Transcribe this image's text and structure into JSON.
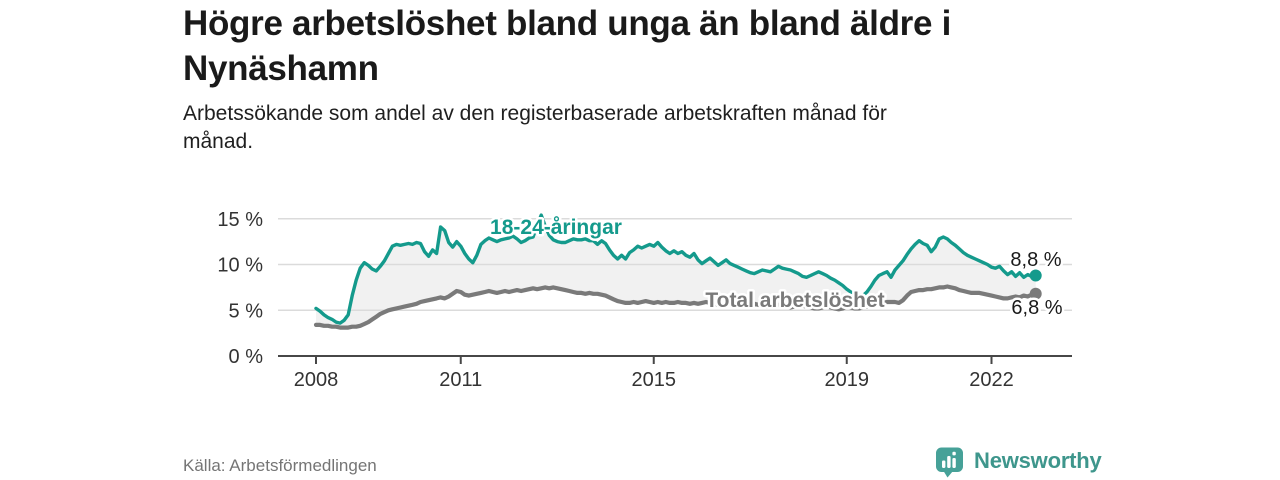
{
  "header": {
    "title": "Högre arbetslöshet bland unga än bland äldre i\nNynäshamn",
    "subtitle": "Arbetssökande som andel av den registerbaserade arbetskraften månad för\nmånad."
  },
  "footer": {
    "source": "Källa: Arbetsförmedlingen",
    "brand": "Newsworthy"
  },
  "colors": {
    "accent_teal": "#149A8C",
    "total_gray": "#7A7A7A",
    "band": "#F1F1F1",
    "grid": "#DBDBDB",
    "axis": "#474747",
    "tick_text": "#333333",
    "annotation": "#1A1A1A",
    "brand_icon_teal": "#46A198",
    "brand_text_teal": "#3E968C",
    "source_text": "#757575"
  },
  "chart_data": {
    "type": "line",
    "frequency": "monthly",
    "start": "2008-01",
    "end": "2022-12",
    "grid": true,
    "x_ticks": [
      2008,
      2011,
      2015,
      2019,
      2022
    ],
    "y_ticks": [
      0,
      5,
      10,
      15
    ],
    "y_tick_suffix": " %",
    "ylim": [
      0,
      16
    ],
    "series": [
      {
        "name": "18-24-åringar",
        "color": "#149A8C",
        "end_label": "8,8 %",
        "end_value": 8.8,
        "values": [
          5.2,
          4.9,
          4.5,
          4.2,
          4.0,
          3.7,
          3.6,
          3.9,
          4.5,
          6.6,
          8.3,
          9.6,
          10.2,
          9.9,
          9.5,
          9.3,
          9.8,
          10.4,
          11.2,
          12.0,
          12.2,
          12.1,
          12.2,
          12.3,
          12.2,
          12.4,
          12.3,
          11.4,
          10.9,
          11.6,
          11.2,
          14.1,
          13.7,
          12.4,
          11.9,
          12.5,
          12.0,
          11.2,
          10.6,
          10.2,
          11.0,
          12.2,
          12.6,
          12.9,
          12.7,
          12.5,
          12.7,
          12.8,
          12.9,
          13.1,
          12.8,
          12.4,
          12.6,
          12.9,
          13.0,
          14.3,
          15.4,
          14.2,
          13.2,
          12.7,
          12.5,
          12.4,
          12.4,
          12.6,
          12.8,
          12.7,
          12.7,
          12.8,
          12.6,
          12.6,
          12.2,
          12.6,
          12.3,
          11.6,
          11.0,
          10.6,
          11.0,
          10.6,
          11.3,
          11.6,
          12.0,
          11.8,
          12.0,
          12.2,
          12.0,
          12.4,
          11.9,
          11.5,
          11.2,
          11.5,
          11.2,
          11.4,
          11.0,
          10.8,
          11.2,
          10.5,
          10.1,
          10.4,
          10.7,
          10.3,
          9.9,
          10.2,
          10.5,
          10.1,
          9.9,
          9.7,
          9.5,
          9.3,
          9.1,
          9.0,
          9.2,
          9.4,
          9.3,
          9.2,
          9.5,
          9.8,
          9.6,
          9.5,
          9.4,
          9.2,
          9.0,
          8.7,
          8.6,
          8.8,
          9.0,
          9.2,
          9.0,
          8.8,
          8.5,
          8.3,
          8.0,
          7.7,
          7.3,
          7.0,
          6.8,
          6.7,
          6.6,
          7.0,
          7.6,
          8.3,
          8.8,
          9.0,
          9.2,
          8.6,
          9.4,
          9.9,
          10.4,
          11.1,
          11.7,
          12.2,
          12.6,
          12.3,
          12.1,
          11.4,
          11.9,
          12.8,
          13.0,
          12.8,
          12.4,
          12.1,
          11.7,
          11.3,
          11.0,
          10.8,
          10.6,
          10.4,
          10.2,
          10.0,
          9.7,
          9.6,
          9.8,
          9.3,
          8.9,
          9.2,
          8.7,
          9.1,
          8.6,
          8.9,
          8.7,
          8.8
        ]
      },
      {
        "name": "Total arbetslöshet",
        "color": "#7A7A7A",
        "end_label": "6,8 %",
        "end_value": 6.8,
        "values": [
          3.4,
          3.4,
          3.3,
          3.3,
          3.2,
          3.2,
          3.1,
          3.1,
          3.1,
          3.2,
          3.2,
          3.3,
          3.5,
          3.7,
          4.0,
          4.3,
          4.6,
          4.8,
          5.0,
          5.1,
          5.2,
          5.3,
          5.4,
          5.5,
          5.6,
          5.7,
          5.9,
          6.0,
          6.1,
          6.2,
          6.3,
          6.4,
          6.3,
          6.5,
          6.8,
          7.1,
          7.0,
          6.7,
          6.6,
          6.7,
          6.8,
          6.9,
          7.0,
          7.1,
          7.0,
          6.9,
          7.0,
          7.1,
          7.0,
          7.1,
          7.2,
          7.1,
          7.2,
          7.3,
          7.4,
          7.3,
          7.4,
          7.5,
          7.4,
          7.5,
          7.4,
          7.3,
          7.2,
          7.1,
          7.0,
          6.9,
          6.9,
          6.8,
          6.9,
          6.8,
          6.8,
          6.7,
          6.6,
          6.4,
          6.2,
          6.0,
          5.9,
          5.8,
          5.8,
          5.9,
          5.8,
          5.9,
          6.0,
          5.9,
          5.8,
          5.9,
          5.8,
          5.9,
          5.8,
          5.8,
          5.9,
          5.8,
          5.8,
          5.7,
          5.8,
          5.7,
          5.8,
          5.9,
          5.8,
          5.7,
          5.6,
          5.6,
          5.7,
          5.8,
          5.7,
          5.6,
          5.5,
          5.6,
          5.6,
          5.7,
          5.6,
          5.5,
          5.4,
          5.4,
          5.5,
          5.6,
          5.5,
          5.4,
          5.3,
          5.4,
          5.4,
          5.5,
          5.4,
          5.3,
          5.2,
          5.2,
          5.3,
          5.4,
          5.3,
          5.2,
          5.1,
          5.2,
          5.4,
          5.3,
          5.2,
          5.2,
          5.3,
          5.4,
          5.5,
          5.6,
          5.7,
          5.8,
          5.9,
          5.9,
          5.9,
          5.8,
          6.1,
          6.6,
          7.0,
          7.1,
          7.2,
          7.2,
          7.3,
          7.3,
          7.4,
          7.5,
          7.5,
          7.6,
          7.5,
          7.4,
          7.2,
          7.1,
          7.0,
          6.9,
          6.9,
          6.9,
          6.8,
          6.7,
          6.6,
          6.5,
          6.4,
          6.3,
          6.3,
          6.4,
          6.5,
          6.4,
          6.6,
          6.5,
          6.7,
          6.8
        ]
      }
    ]
  }
}
